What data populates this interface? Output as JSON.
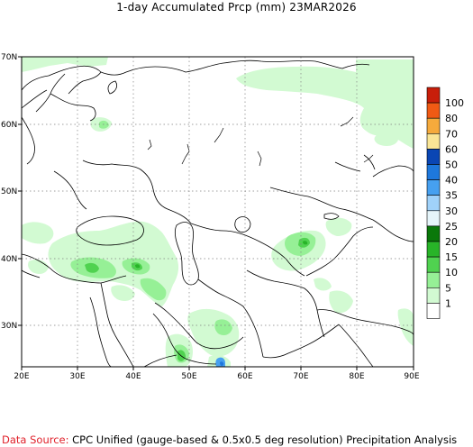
{
  "title": "1-day Accumulated Prcp (mm) 23MAR2026",
  "map": {
    "lat_ticks": [
      "70N",
      "60N",
      "50N",
      "40N",
      "30N"
    ],
    "lon_ticks": [
      "20E",
      "30E",
      "40E",
      "50E",
      "60E",
      "70E",
      "80E",
      "90E"
    ],
    "grid": true
  },
  "legend": {
    "levels": [
      {
        "label": "100",
        "color": "#c81e0a"
      },
      {
        "label": "80",
        "color": "#f05a14"
      },
      {
        "label": "70",
        "color": "#f5aa3c"
      },
      {
        "label": "60",
        "color": "#fae696"
      },
      {
        "label": "50",
        "color": "#0a46b4"
      },
      {
        "label": "40",
        "color": "#1e78dc"
      },
      {
        "label": "35",
        "color": "#46a0f0"
      },
      {
        "label": "30",
        "color": "#a0d2fa"
      },
      {
        "label": "25",
        "color": "#e6f5fa"
      },
      {
        "label": "20",
        "color": "#0a780a"
      },
      {
        "label": "15",
        "color": "#28b428"
      },
      {
        "label": "10",
        "color": "#50d250"
      },
      {
        "label": "5",
        "color": "#96f096"
      },
      {
        "label": "1",
        "color": "#d2fad2"
      },
      {
        "label": "",
        "color": "#ffffff"
      }
    ]
  },
  "footer": {
    "source_label": "Data Source:",
    "source_text": "CPC Unified (gauge-based & 0.5x0.5 deg resolution) Precipitation Analysis"
  }
}
